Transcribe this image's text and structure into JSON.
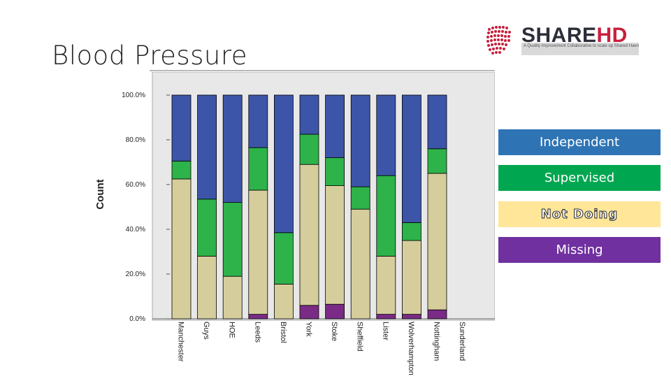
{
  "slide": {
    "title": "Blood Pressure"
  },
  "logo": {
    "brand_part1": "SHARE",
    "brand_part2": "HD",
    "tagline": "A Quality Improvement Collaborative to scale up Shared Haemodialysis Care in centre based haemodialysis patients"
  },
  "colors": {
    "independent": "#3c55a8",
    "supervised": "#2eb24a",
    "not_doing": "#d5ce9c",
    "missing": "#7a2b86",
    "plot_bg": "#e8e8e8"
  },
  "chart_data": {
    "type": "bar",
    "stacked": true,
    "title": "",
    "xlabel": "",
    "ylabel": "Count",
    "ylim": [
      0,
      100
    ],
    "yticks": [
      "0.0%",
      "20.0%",
      "40.0%",
      "60.0%",
      "80.0%",
      "100.0%"
    ],
    "categories": [
      "Manchester",
      "Guys",
      "HOE",
      "Leeds",
      "Bristol",
      "York",
      "Stoke",
      "Sheffield",
      "Lister",
      "Wolverhampton",
      "Nottingham",
      "Sunderland"
    ],
    "series": [
      {
        "name": "Missing",
        "color_key": "missing",
        "values": [
          0,
          0,
          0,
          2,
          0,
          6,
          6.5,
          0,
          2,
          2,
          4,
          0
        ]
      },
      {
        "name": "Not Doing",
        "color_key": "not_doing",
        "values": [
          62.5,
          28,
          19,
          55.5,
          15.5,
          63,
          53,
          49,
          26,
          33,
          61,
          0
        ]
      },
      {
        "name": "Supervised",
        "color_key": "supervised",
        "values": [
          8,
          25.5,
          33,
          19,
          23,
          13.5,
          12.5,
          10,
          36,
          8,
          11,
          0
        ]
      },
      {
        "name": "Independent",
        "color_key": "independent",
        "values": [
          29.5,
          46.5,
          48,
          23.5,
          61.5,
          17.5,
          28,
          41,
          36,
          57,
          24,
          0
        ]
      }
    ],
    "legend": [
      "Independent",
      "Supervised",
      "Not Doing",
      "Missing"
    ]
  }
}
